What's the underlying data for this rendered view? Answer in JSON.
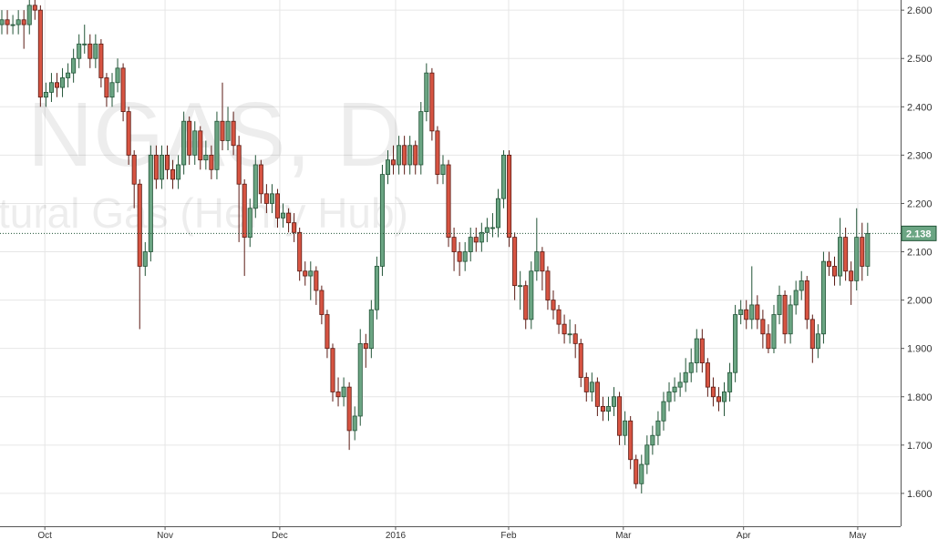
{
  "chart_data": {
    "type": "candlestick",
    "watermark_symbol": "NGAS, D",
    "watermark_name": "tural Gas (Henry Hub)",
    "colors": {
      "up": "#6ba583",
      "up_border": "#225437",
      "down": "#d75442",
      "down_border": "#5b1a13"
    },
    "grid": true,
    "last_price": 2.138,
    "ylim": [
      1.532,
      2.621
    ],
    "yticks": [
      {
        "value": 1.6,
        "label": "1.600"
      },
      {
        "value": 1.7,
        "label": "1.700"
      },
      {
        "value": 1.8,
        "label": "1.800"
      },
      {
        "value": 1.9,
        "label": "1.900"
      },
      {
        "value": 2.0,
        "label": "2.000"
      },
      {
        "value": 2.1,
        "label": "2.100"
      },
      {
        "value": 2.2,
        "label": "2.200"
      },
      {
        "value": 2.3,
        "label": "2.300"
      },
      {
        "value": 2.4,
        "label": "2.400"
      },
      {
        "value": 2.5,
        "label": "2.500"
      },
      {
        "value": 2.6,
        "label": "2.600"
      }
    ],
    "xlim": [
      -0.33,
      162.98
    ],
    "xticks": [
      {
        "value": 7.8,
        "label": "Oct"
      },
      {
        "value": 29.6,
        "label": "Nov"
      },
      {
        "value": 50.4,
        "label": "Dec"
      },
      {
        "value": 71.4,
        "label": "2016"
      },
      {
        "value": 91.9,
        "label": "Feb"
      },
      {
        "value": 112.7,
        "label": "Mar"
      },
      {
        "value": 134.5,
        "label": "Apr"
      },
      {
        "value": 155.2,
        "label": "May"
      }
    ],
    "open": [
      2.57,
      2.58,
      2.57,
      2.57,
      2.58,
      2.57,
      2.61,
      2.6,
      2.42,
      2.43,
      2.45,
      2.44,
      2.46,
      2.47,
      2.5,
      2.53,
      2.53,
      2.5,
      2.53,
      2.46,
      2.42,
      2.45,
      2.48,
      2.39,
      2.3,
      2.24,
      2.07,
      2.1,
      2.3,
      2.25,
      2.3,
      2.27,
      2.25,
      2.28,
      2.37,
      2.3,
      2.35,
      2.29,
      2.3,
      2.27,
      2.37,
      2.33,
      2.37,
      2.32,
      2.24,
      2.13,
      2.19,
      2.28,
      2.22,
      2.2,
      2.22,
      2.17,
      2.18,
      2.16,
      2.14,
      2.06,
      2.05,
      2.06,
      2.02,
      1.97,
      1.9,
      1.81,
      1.8,
      1.82,
      1.73,
      1.76,
      1.91,
      1.9,
      1.98,
      2.07,
      2.26,
      2.29,
      2.28,
      2.32,
      2.28,
      2.32,
      2.28,
      2.39,
      2.47,
      2.35,
      2.26,
      2.28,
      2.13,
      2.1,
      2.08,
      2.1,
      2.13,
      2.12,
      2.14,
      2.15,
      2.15,
      2.21,
      2.3,
      2.13,
      2.03,
      2.03,
      1.96,
      2.06,
      2.1,
      2.06,
      2.0,
      1.98,
      1.95,
      1.93,
      1.93,
      1.91,
      1.84,
      1.81,
      1.83,
      1.78,
      1.77,
      1.78,
      1.8,
      1.72,
      1.75,
      1.67,
      1.62,
      1.66,
      1.7,
      1.72,
      1.75,
      1.79,
      1.81,
      1.82,
      1.83,
      1.85,
      1.87,
      1.92,
      1.87,
      1.82,
      1.8,
      1.79,
      1.81,
      1.85,
      1.97,
      1.98,
      1.96,
      1.99,
      1.96,
      1.93,
      1.9,
      1.97,
      2.01,
      1.93,
      1.99,
      2.02,
      2.04,
      1.96,
      1.9,
      1.93,
      2.08,
      2.07,
      2.05,
      2.13,
      2.06,
      2.04,
      2.13,
      2.07
    ],
    "high": [
      2.6,
      2.6,
      2.59,
      2.6,
      2.6,
      2.63,
      2.63,
      2.61,
      2.45,
      2.47,
      2.47,
      2.48,
      2.49,
      2.52,
      2.55,
      2.57,
      2.55,
      2.55,
      2.54,
      2.47,
      2.47,
      2.5,
      2.49,
      2.4,
      2.31,
      2.25,
      2.12,
      2.32,
      2.32,
      2.32,
      2.32,
      2.29,
      2.3,
      2.39,
      2.38,
      2.37,
      2.36,
      2.33,
      2.32,
      2.39,
      2.45,
      2.4,
      2.39,
      2.34,
      2.25,
      2.21,
      2.3,
      2.29,
      2.24,
      2.24,
      2.23,
      2.2,
      2.19,
      2.18,
      2.15,
      2.08,
      2.08,
      2.07,
      2.03,
      1.98,
      1.91,
      1.84,
      1.84,
      1.83,
      1.78,
      1.94,
      1.93,
      2.0,
      2.09,
      2.28,
      2.31,
      2.32,
      2.34,
      2.34,
      2.34,
      2.33,
      2.41,
      2.49,
      2.48,
      2.36,
      2.3,
      2.29,
      2.15,
      2.12,
      2.12,
      2.15,
      2.15,
      2.16,
      2.17,
      2.18,
      2.23,
      2.31,
      2.31,
      2.14,
      2.06,
      2.04,
      2.08,
      2.17,
      2.11,
      2.07,
      2.02,
      1.99,
      1.97,
      1.96,
      1.95,
      1.92,
      1.85,
      1.85,
      1.84,
      1.8,
      1.8,
      1.82,
      1.81,
      1.77,
      1.76,
      1.68,
      1.68,
      1.72,
      1.74,
      1.77,
      1.81,
      1.83,
      1.84,
      1.85,
      1.88,
      1.9,
      1.94,
      1.94,
      1.88,
      1.84,
      1.82,
      1.83,
      1.87,
      1.99,
      2.0,
      2.0,
      2.07,
      2.01,
      1.98,
      1.95,
      1.99,
      2.03,
      2.02,
      2.01,
      2.04,
      2.06,
      2.05,
      1.97,
      1.95,
      2.1,
      2.1,
      2.09,
      2.17,
      2.15,
      2.08,
      2.19,
      2.16,
      2.16
    ],
    "low": [
      2.55,
      2.55,
      2.55,
      2.55,
      2.52,
      2.55,
      2.58,
      2.4,
      2.4,
      2.41,
      2.42,
      2.42,
      2.44,
      2.45,
      2.48,
      2.51,
      2.48,
      2.48,
      2.44,
      2.4,
      2.4,
      2.43,
      2.37,
      2.28,
      2.19,
      1.94,
      2.05,
      2.08,
      2.23,
      2.23,
      2.25,
      2.23,
      2.23,
      2.26,
      2.28,
      2.28,
      2.27,
      2.27,
      2.25,
      2.25,
      2.31,
      2.31,
      2.3,
      2.12,
      2.05,
      2.11,
      2.17,
      2.2,
      2.18,
      2.18,
      2.15,
      2.15,
      2.14,
      2.12,
      2.04,
      2.03,
      2.0,
      1.99,
      1.95,
      1.88,
      1.79,
      1.78,
      1.78,
      1.69,
      1.71,
      1.74,
      1.86,
      1.88,
      1.96,
      2.05,
      2.24,
      2.26,
      2.26,
      2.26,
      2.26,
      2.26,
      2.26,
      2.37,
      2.33,
      2.24,
      2.24,
      2.11,
      2.06,
      2.05,
      2.06,
      2.08,
      2.1,
      2.1,
      2.12,
      2.13,
      2.13,
      2.19,
      2.11,
      2.0,
      1.98,
      1.94,
      1.94,
      2.04,
      2.02,
      1.98,
      1.96,
      1.93,
      1.91,
      1.91,
      1.88,
      1.82,
      1.79,
      1.79,
      1.76,
      1.75,
      1.75,
      1.76,
      1.7,
      1.7,
      1.65,
      1.61,
      1.6,
      1.64,
      1.68,
      1.7,
      1.73,
      1.77,
      1.79,
      1.8,
      1.81,
      1.83,
      1.85,
      1.85,
      1.8,
      1.78,
      1.77,
      1.76,
      1.79,
      1.83,
      1.95,
      1.94,
      1.94,
      1.94,
      1.9,
      1.89,
      1.89,
      1.95,
      1.91,
      1.91,
      1.97,
      2.0,
      1.94,
      1.87,
      1.88,
      1.91,
      2.05,
      2.03,
      2.03,
      2.04,
      1.99,
      2.02,
      2.04,
      2.05
    ],
    "close": [
      2.58,
      2.57,
      2.57,
      2.58,
      2.57,
      2.61,
      2.6,
      2.42,
      2.43,
      2.45,
      2.44,
      2.46,
      2.47,
      2.5,
      2.53,
      2.53,
      2.5,
      2.53,
      2.46,
      2.42,
      2.45,
      2.48,
      2.39,
      2.3,
      2.24,
      2.07,
      2.1,
      2.3,
      2.25,
      2.3,
      2.27,
      2.25,
      2.28,
      2.37,
      2.3,
      2.35,
      2.29,
      2.3,
      2.27,
      2.37,
      2.33,
      2.37,
      2.32,
      2.24,
      2.13,
      2.19,
      2.28,
      2.22,
      2.2,
      2.22,
      2.17,
      2.18,
      2.16,
      2.14,
      2.06,
      2.05,
      2.06,
      2.02,
      1.97,
      1.9,
      1.81,
      1.8,
      1.82,
      1.73,
      1.76,
      1.91,
      1.9,
      1.98,
      2.07,
      2.26,
      2.29,
      2.28,
      2.32,
      2.28,
      2.32,
      2.28,
      2.39,
      2.47,
      2.35,
      2.26,
      2.28,
      2.13,
      2.1,
      2.08,
      2.1,
      2.13,
      2.12,
      2.14,
      2.15,
      2.15,
      2.21,
      2.3,
      2.13,
      2.03,
      2.03,
      1.96,
      2.06,
      2.1,
      2.06,
      2.0,
      1.98,
      1.95,
      1.93,
      1.93,
      1.91,
      1.84,
      1.81,
      1.83,
      1.78,
      1.77,
      1.78,
      1.8,
      1.72,
      1.75,
      1.67,
      1.62,
      1.66,
      1.7,
      1.72,
      1.75,
      1.79,
      1.81,
      1.82,
      1.83,
      1.85,
      1.87,
      1.92,
      1.87,
      1.82,
      1.8,
      1.79,
      1.81,
      1.85,
      1.97,
      1.98,
      1.96,
      1.99,
      1.96,
      1.93,
      1.9,
      1.97,
      2.01,
      1.93,
      1.99,
      2.02,
      2.04,
      1.96,
      1.9,
      1.93,
      2.08,
      2.07,
      2.05,
      2.13,
      2.06,
      2.04,
      2.13,
      2.07,
      2.138
    ]
  }
}
